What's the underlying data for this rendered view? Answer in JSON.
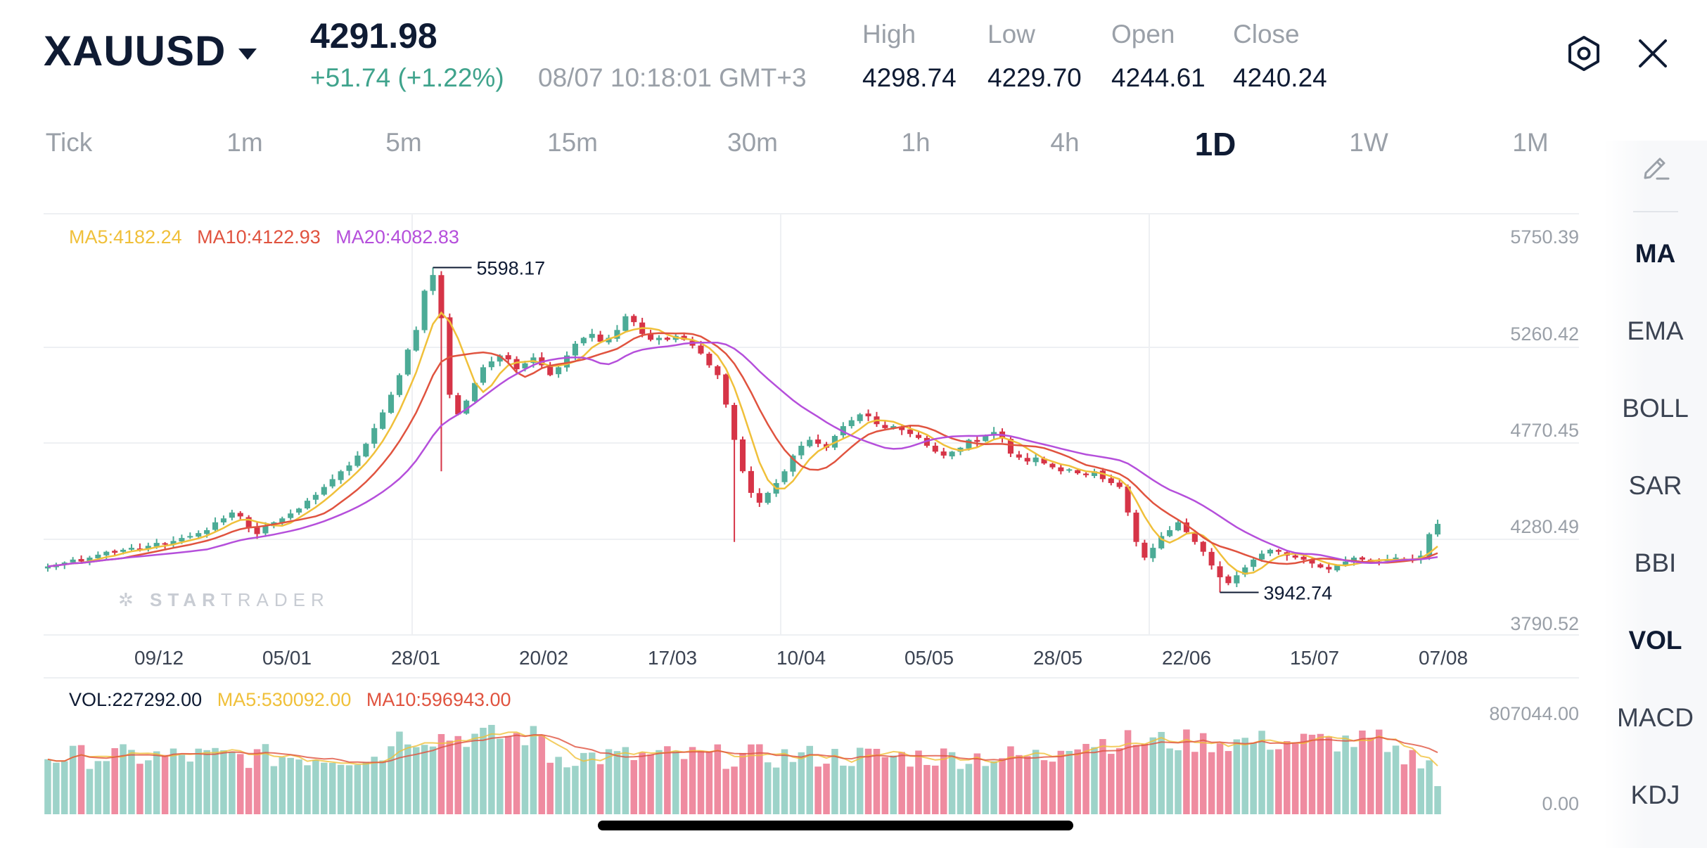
{
  "header": {
    "symbol": "XAUUSD",
    "price": "4291.98",
    "change": "+51.74 (+1.22%)",
    "timestamp": "08/07 10:18:01 GMT+3",
    "ohlc": [
      {
        "label": "High",
        "value": "4298.74"
      },
      {
        "label": "Low",
        "value": "4229.70"
      },
      {
        "label": "Open",
        "value": "4244.61"
      },
      {
        "label": "Close",
        "value": "4240.24"
      }
    ],
    "icons": {
      "settings": "settings-hexagon-icon",
      "close": "close-icon"
    }
  },
  "timeframes": [
    "Tick",
    "1m",
    "5m",
    "15m",
    "30m",
    "1h",
    "4h",
    "1D",
    "1W",
    "1M"
  ],
  "active_timeframe": "1D",
  "side_panel": {
    "draw_icon": "draw-pencil-icon",
    "items": [
      "MA",
      "EMA",
      "BOLL",
      "SAR",
      "BBI",
      "VOL",
      "MACD",
      "KDJ"
    ],
    "active": [
      "MA",
      "VOL"
    ]
  },
  "indicators": {
    "ma5": "MA5:4182.24",
    "ma10": "MA10:4122.93",
    "ma20": "MA20:4082.83",
    "vol": "VOL:227292.00",
    "vol_ma5": "MA5:530092.00",
    "vol_ma10": "MA10:596943.00"
  },
  "watermark": {
    "bold": "STAR",
    "light": "TRADER"
  },
  "colors": {
    "up": "#4cab96",
    "down": "#d63447",
    "ma5": "#f0c03a",
    "ma10": "#e0533f",
    "ma20": "#b54fdb",
    "vol_up": "#9dd3c9",
    "vol_down": "#ef8ba0",
    "positive_text": "#3fa38c"
  },
  "chart_data": {
    "type": "candlestick",
    "y_axis_labels": [
      "5750.39",
      "5260.42",
      "4770.45",
      "4280.49",
      "3790.52"
    ],
    "ylim": [
      3790.52,
      5750.39
    ],
    "x_axis_labels": [
      "09/12",
      "05/01",
      "28/01",
      "20/02",
      "17/03",
      "10/04",
      "05/05",
      "28/05",
      "22/06",
      "15/07",
      "07/08"
    ],
    "annotations": [
      {
        "label": "5598.17",
        "type": "high"
      },
      {
        "label": "3942.74",
        "type": "low"
      }
    ],
    "close_series": [
      4075,
      4085,
      4095,
      4110,
      4100,
      4120,
      4135,
      4150,
      4145,
      4160,
      4170,
      4165,
      4180,
      4195,
      4190,
      4205,
      4220,
      4230,
      4245,
      4260,
      4300,
      4320,
      4350,
      4330,
      4270,
      4240,
      4280,
      4300,
      4320,
      4345,
      4370,
      4410,
      4440,
      4480,
      4520,
      4560,
      4590,
      4640,
      4700,
      4780,
      4860,
      4950,
      5050,
      5180,
      5280,
      5480,
      5560,
      5340,
      4950,
      4850,
      4920,
      5010,
      5090,
      5120,
      5150,
      5130,
      5080,
      5110,
      5140,
      5100,
      5050,
      5090,
      5150,
      5210,
      5240,
      5260,
      5220,
      5240,
      5280,
      5350,
      5320,
      5260,
      5230,
      5240,
      5230,
      5250,
      5230,
      5200,
      5160,
      5100,
      5050,
      4900,
      4720,
      4560,
      4450,
      4400,
      4450,
      4500,
      4560,
      4640,
      4690,
      4720,
      4700,
      4680,
      4740,
      4790,
      4820,
      4850,
      4840,
      4800,
      4780,
      4790,
      4770,
      4750,
      4730,
      4690,
      4660,
      4640,
      4660,
      4680,
      4720,
      4710,
      4740,
      4760,
      4730,
      4650,
      4630,
      4610,
      4630,
      4600,
      4580,
      4560,
      4570,
      4550,
      4540,
      4560,
      4520,
      4500,
      4480,
      4350,
      4200,
      4120,
      4170,
      4230,
      4260,
      4300,
      4250,
      4200,
      4150,
      4080,
      4020,
      3990,
      4030,
      4070,
      4110,
      4140,
      4160,
      4150,
      4130,
      4120,
      4110,
      4090,
      4070,
      4060,
      4080,
      4100,
      4120,
      4110,
      4105,
      4100,
      4110,
      4120,
      4115,
      4110,
      4130,
      4240,
      4292
    ],
    "volume_ylim": [
      0,
      807044
    ],
    "volume_axis_labels": [
      "807044.00",
      "0.00"
    ]
  }
}
